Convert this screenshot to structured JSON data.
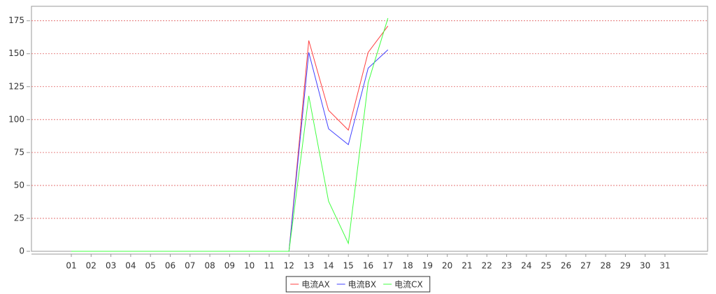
{
  "chart_data": {
    "type": "line",
    "categories": [
      "01",
      "02",
      "03",
      "04",
      "05",
      "06",
      "07",
      "08",
      "09",
      "10",
      "11",
      "12",
      "13",
      "14",
      "15",
      "16",
      "17",
      "18",
      "19",
      "20",
      "21",
      "22",
      "23",
      "24",
      "25",
      "26",
      "27",
      "28",
      "29",
      "30",
      "31"
    ],
    "series": [
      {
        "name": "电流AX",
        "color": "#ff4040",
        "values": [
          0,
          0,
          0,
          0,
          0,
          0,
          0,
          0,
          0,
          0,
          0,
          0,
          160,
          107,
          92,
          151,
          171,
          null,
          null,
          null,
          null,
          null,
          null,
          null,
          null,
          null,
          null,
          null,
          null,
          null,
          null
        ]
      },
      {
        "name": "电流BX",
        "color": "#4040ff",
        "values": [
          0,
          0,
          0,
          0,
          0,
          0,
          0,
          0,
          0,
          0,
          0,
          0,
          151,
          93,
          81,
          139,
          153,
          null,
          null,
          null,
          null,
          null,
          null,
          null,
          null,
          null,
          null,
          null,
          null,
          null,
          null
        ]
      },
      {
        "name": "电流CX",
        "color": "#40ff40",
        "values": [
          0,
          0,
          0,
          0,
          0,
          0,
          0,
          0,
          0,
          0,
          0,
          0,
          118,
          38,
          6,
          128,
          177,
          null,
          null,
          null,
          null,
          null,
          null,
          null,
          null,
          null,
          null,
          null,
          null,
          null,
          null
        ]
      }
    ],
    "ylim": [
      0,
      186
    ],
    "yticks": [
      0,
      25,
      50,
      75,
      100,
      125,
      150,
      175
    ],
    "grid": true,
    "legend": "bottom"
  }
}
